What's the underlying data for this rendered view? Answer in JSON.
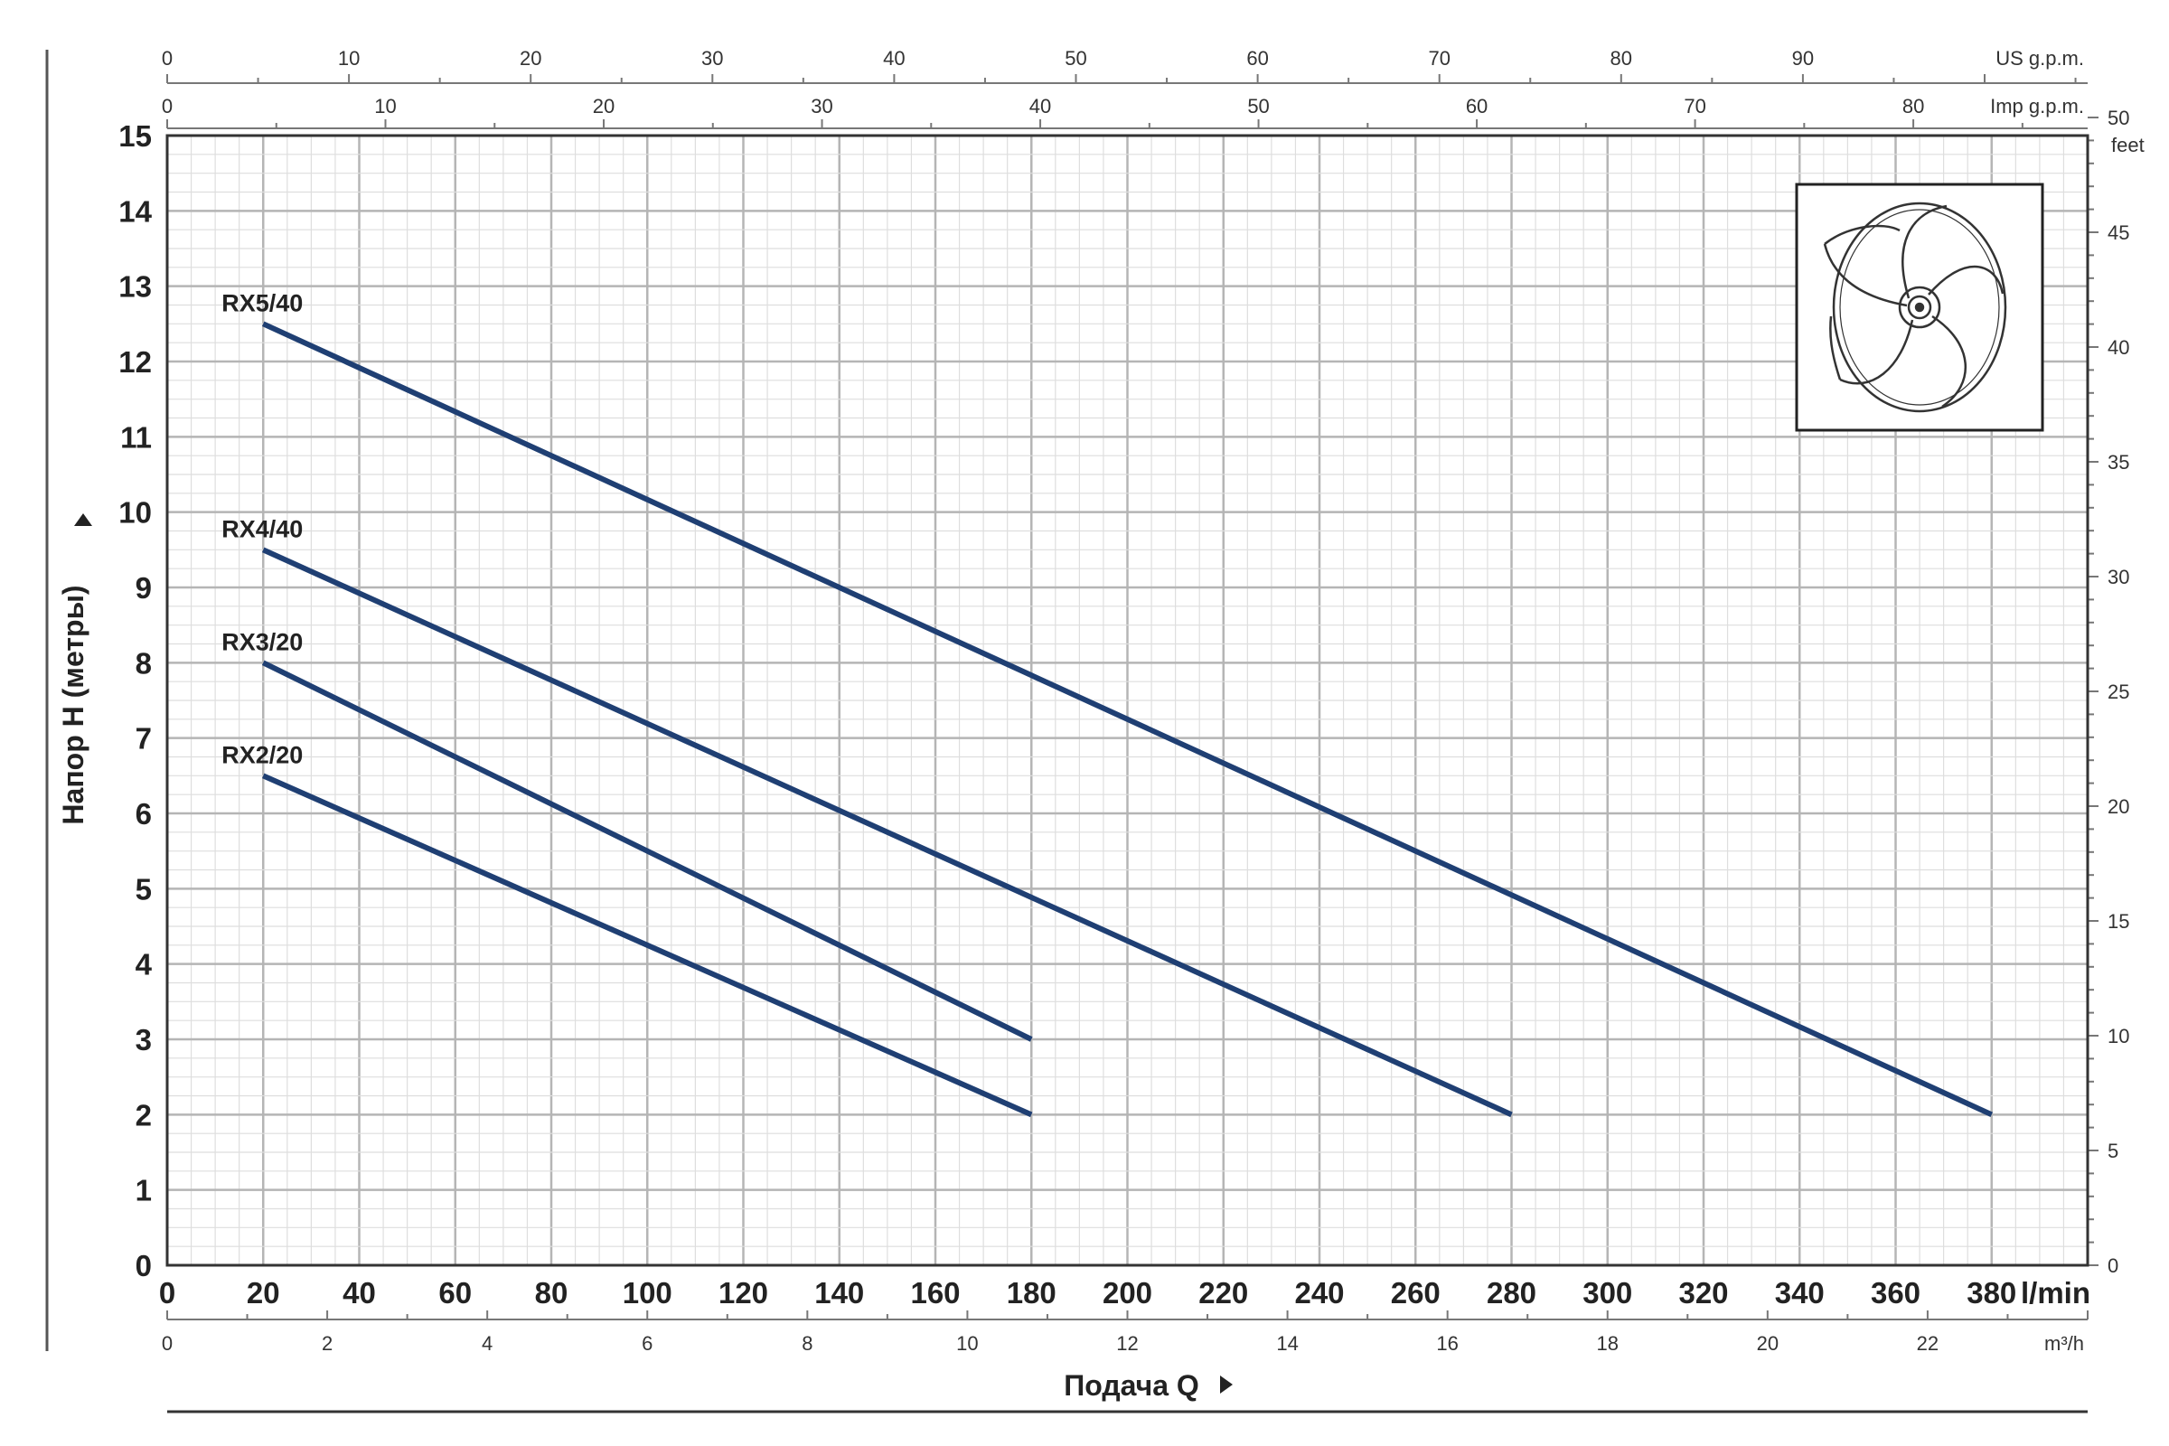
{
  "chart_data": {
    "type": "line",
    "title": "",
    "xlabel": "Подача Q",
    "ylabel": "Напор H (метры)",
    "x_unit": "l/min",
    "xlim": [
      0,
      400
    ],
    "ylim": [
      0,
      15
    ],
    "grid": true,
    "x_ticks": [
      0,
      20,
      40,
      60,
      80,
      100,
      120,
      140,
      160,
      180,
      200,
      220,
      240,
      260,
      280,
      300,
      320,
      340,
      360,
      380
    ],
    "y_ticks": [
      0,
      1,
      2,
      3,
      4,
      5,
      6,
      7,
      8,
      9,
      10,
      11,
      12,
      13,
      14,
      15
    ],
    "secondary_axes": {
      "bottom": {
        "unit": "m³/h",
        "ticks": [
          0,
          2,
          4,
          6,
          8,
          10,
          12,
          14,
          16,
          18,
          20,
          22
        ]
      },
      "top_us": {
        "unit": "US g.p.m.",
        "ticks": [
          0,
          10,
          20,
          30,
          40,
          50,
          60,
          70,
          80,
          90
        ]
      },
      "top_imp": {
        "unit": "Imp g.p.m.",
        "ticks": [
          0,
          10,
          20,
          30,
          40,
          50,
          60,
          70,
          80
        ]
      },
      "right": {
        "unit": "feet",
        "ticks": [
          0,
          5,
          10,
          15,
          20,
          25,
          30,
          35,
          40,
          45,
          50
        ]
      }
    },
    "series": [
      {
        "name": "RX5/40",
        "x": [
          20,
          380
        ],
        "y": [
          12.5,
          2
        ]
      },
      {
        "name": "RX4/40",
        "x": [
          20,
          280
        ],
        "y": [
          9.5,
          2
        ]
      },
      {
        "name": "RX3/20",
        "x": [
          20,
          180
        ],
        "y": [
          8,
          3
        ]
      },
      {
        "name": "RX2/20",
        "x": [
          20,
          180
        ],
        "y": [
          6.5,
          2
        ]
      }
    ],
    "colors": {
      "series": "#1f3f73",
      "grid": "#c8c8c8",
      "frame": "#333333"
    }
  },
  "inset": {
    "icon": "impeller-icon"
  }
}
